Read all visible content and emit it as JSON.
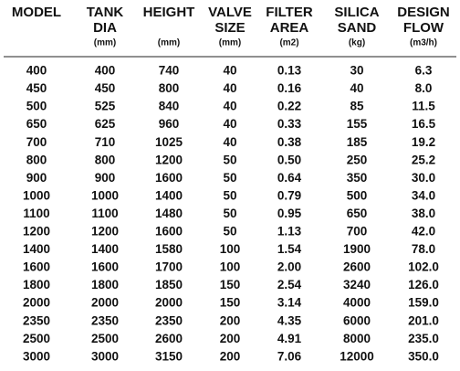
{
  "table": {
    "columns": [
      {
        "title": [
          "MODEL"
        ]
      },
      {
        "title": [
          "TANK",
          "DIA"
        ],
        "unit": "(mm)"
      },
      {
        "title": [
          "HEIGHT"
        ],
        "unit": "(mm)"
      },
      {
        "title": [
          "VALVE",
          "SIZE"
        ],
        "unit": "(mm)"
      },
      {
        "title": [
          "FILTER",
          "AREA"
        ],
        "unit": "(m2)"
      },
      {
        "title": [
          "SILICA",
          "SAND"
        ],
        "unit": "(kg)"
      },
      {
        "title": [
          "DESIGN",
          "FLOW"
        ],
        "unit": "(m3/h)"
      }
    ],
    "rows": [
      [
        "400",
        "400",
        "740",
        "40",
        "0.13",
        "30",
        "6.3"
      ],
      [
        "450",
        "450",
        "800",
        "40",
        "0.16",
        "40",
        "8.0"
      ],
      [
        "500",
        "525",
        "840",
        "40",
        "0.22",
        "85",
        "11.5"
      ],
      [
        "650",
        "625",
        "960",
        "40",
        "0.33",
        "155",
        "16.5"
      ],
      [
        "700",
        "710",
        "1025",
        "40",
        "0.38",
        "185",
        "19.2"
      ],
      [
        "800",
        "800",
        "1200",
        "50",
        "0.50",
        "250",
        "25.2"
      ],
      [
        "900",
        "900",
        "1600",
        "50",
        "0.64",
        "350",
        "30.0"
      ],
      [
        "1000",
        "1000",
        "1400",
        "50",
        "0.79",
        "500",
        "34.0"
      ],
      [
        "1100",
        "1100",
        "1480",
        "50",
        "0.95",
        "650",
        "38.0"
      ],
      [
        "1200",
        "1200",
        "1600",
        "50",
        "1.13",
        "700",
        "42.0"
      ],
      [
        "1400",
        "1400",
        "1580",
        "100",
        "1.54",
        "1900",
        "78.0"
      ],
      [
        "1600",
        "1600",
        "1700",
        "100",
        "2.00",
        "2600",
        "102.0"
      ],
      [
        "1800",
        "1800",
        "1850",
        "150",
        "2.54",
        "3240",
        "126.0"
      ],
      [
        "2000",
        "2000",
        "2000",
        "150",
        "3.14",
        "4000",
        "159.0"
      ],
      [
        "2350",
        "2350",
        "2350",
        "200",
        "4.35",
        "6000",
        "201.0"
      ],
      [
        "2500",
        "2500",
        "2600",
        "200",
        "4.91",
        "8000",
        "235.0"
      ],
      [
        "3000",
        "3000",
        "3150",
        "200",
        "7.06",
        "12000",
        "350.0"
      ]
    ]
  }
}
